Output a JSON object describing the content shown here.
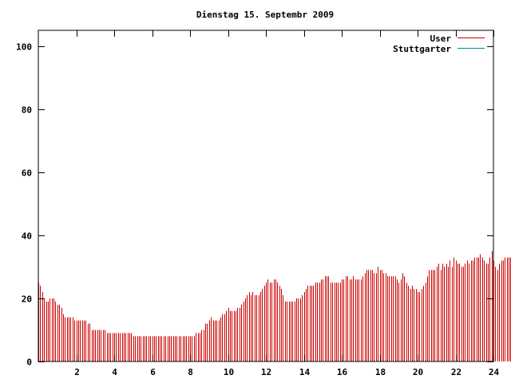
{
  "chart_data": {
    "type": "bar",
    "title": "Dienstag 15. Septembr 2009",
    "xlabel": "",
    "ylabel": "",
    "xlim": [
      0,
      24
    ],
    "ylim": [
      0,
      105
    ],
    "x_ticks": [
      {
        "value": 2,
        "label": "2"
      },
      {
        "value": 4,
        "label": "4"
      },
      {
        "value": 6,
        "label": "6"
      },
      {
        "value": 8,
        "label": "8"
      },
      {
        "value": 10,
        "label": "10"
      },
      {
        "value": 12,
        "label": "12"
      },
      {
        "value": 14,
        "label": "14"
      },
      {
        "value": 16,
        "label": "16"
      },
      {
        "value": 18,
        "label": "18"
      },
      {
        "value": 20,
        "label": "20"
      },
      {
        "value": 22,
        "label": "22"
      },
      {
        "value": 24,
        "label": "24"
      }
    ],
    "y_ticks": [
      {
        "value": 0,
        "label": "0"
      },
      {
        "value": 20,
        "label": "20"
      },
      {
        "value": 40,
        "label": "40"
      },
      {
        "value": 60,
        "label": "60"
      },
      {
        "value": 80,
        "label": "80"
      },
      {
        "value": 100,
        "label": "100"
      }
    ],
    "grid": false,
    "legend": "top-right",
    "interval_hours": 0.1,
    "series": [
      {
        "name": "User",
        "color": "#cc0000",
        "values": [
          25,
          24,
          22,
          20,
          19,
          19,
          20,
          20,
          20,
          19,
          18,
          18,
          17,
          15,
          14,
          14,
          14,
          14,
          14,
          13,
          13,
          13,
          13,
          13,
          13,
          13,
          12,
          12,
          10,
          10,
          10,
          10,
          10,
          10,
          10,
          10,
          9,
          9,
          9,
          9,
          9,
          9,
          9,
          9,
          9,
          9,
          9,
          9,
          9,
          9,
          8,
          8,
          8,
          8,
          8,
          8,
          8,
          8,
          8,
          8,
          8,
          8,
          8,
          8,
          8,
          8,
          8,
          8,
          8,
          8,
          8,
          8,
          8,
          8,
          8,
          8,
          8,
          8,
          8,
          8,
          8,
          8,
          8,
          9,
          9,
          9,
          10,
          10,
          12,
          12,
          13,
          14,
          13,
          13,
          13,
          13,
          14,
          15,
          15,
          16,
          17,
          16,
          16,
          16,
          16,
          17,
          17,
          18,
          19,
          20,
          21,
          22,
          21,
          22,
          21,
          21,
          21,
          22,
          23,
          24,
          25,
          26,
          25,
          25,
          26,
          26,
          25,
          24,
          23,
          21,
          19,
          19,
          19,
          19,
          19,
          19,
          20,
          20,
          20,
          21,
          22,
          23,
          24,
          24,
          24,
          24,
          25,
          25,
          25,
          26,
          26,
          27,
          27,
          27,
          25,
          25,
          25,
          25,
          25,
          25,
          26,
          26,
          27,
          27,
          26,
          26,
          27,
          26,
          26,
          26,
          26,
          27,
          28,
          29,
          29,
          29,
          29,
          28,
          28,
          30,
          29,
          29,
          28,
          28,
          27,
          27,
          27,
          27,
          27,
          26,
          25,
          26,
          28,
          27,
          25,
          24,
          23,
          24,
          23,
          23,
          22,
          22,
          23,
          24,
          25,
          27,
          29,
          29,
          29,
          29,
          30,
          31,
          29,
          31,
          30,
          31,
          30,
          32,
          30,
          33,
          32,
          31,
          31,
          30,
          30,
          31,
          32,
          31,
          32,
          32,
          33,
          33,
          33,
          34,
          33,
          32,
          31,
          31,
          33,
          35,
          32,
          30,
          29,
          31,
          32,
          32,
          33,
          33,
          33,
          33,
          32,
          32,
          33,
          32,
          33,
          34,
          34,
          35,
          37,
          36,
          36,
          35,
          35
        ]
      },
      {
        "name": "Stuttgarter",
        "color": "#008b8b",
        "values": []
      }
    ]
  }
}
